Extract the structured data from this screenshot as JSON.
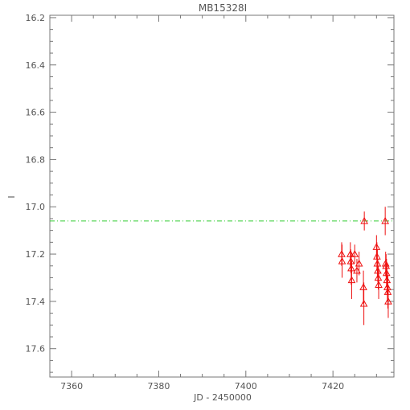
{
  "chart_data": {
    "type": "scatter",
    "title": "MB15328I",
    "xlabel": "JD - 2450000",
    "ylabel": "I",
    "xlim": [
      7355,
      7434
    ],
    "ylim": [
      17.72,
      16.19
    ],
    "y_inverted": true,
    "x_ticks": [
      {
        "value": 7360,
        "label": "7360"
      },
      {
        "value": 7380,
        "label": "7380"
      },
      {
        "value": 7400,
        "label": "7400"
      },
      {
        "value": 7420,
        "label": "7420"
      }
    ],
    "y_ticks": [
      {
        "value": 16.2,
        "label": "16.2"
      },
      {
        "value": 16.4,
        "label": "16.4"
      },
      {
        "value": 16.6,
        "label": "16.6"
      },
      {
        "value": 16.8,
        "label": "16.8"
      },
      {
        "value": 17.0,
        "label": "17.0"
      },
      {
        "value": 17.2,
        "label": "17.2"
      },
      {
        "value": 17.4,
        "label": "17.4"
      },
      {
        "value": 17.6,
        "label": "17.6"
      }
    ],
    "reference_line": {
      "y": 17.06,
      "color": "#33cc33",
      "style": "dash-dot"
    },
    "series": [
      {
        "color": "#ee1111",
        "marker": "triangle",
        "points": [
          {
            "x": 7422.0,
            "y": 17.2,
            "err": 0.05
          },
          {
            "x": 7422.1,
            "y": 17.23,
            "err": 0.07
          },
          {
            "x": 7424.0,
            "y": 17.2,
            "err": 0.05
          },
          {
            "x": 7424.1,
            "y": 17.23,
            "err": 0.05
          },
          {
            "x": 7424.2,
            "y": 17.26,
            "err": 0.07
          },
          {
            "x": 7424.3,
            "y": 17.31,
            "err": 0.08
          },
          {
            "x": 7425.0,
            "y": 17.2,
            "err": 0.04
          },
          {
            "x": 7425.5,
            "y": 17.27,
            "err": 0.05
          },
          {
            "x": 7426.0,
            "y": 17.24,
            "err": 0.05
          },
          {
            "x": 7427.0,
            "y": 17.34,
            "err": 0.07
          },
          {
            "x": 7427.1,
            "y": 17.41,
            "err": 0.09
          },
          {
            "x": 7427.2,
            "y": 17.06,
            "err": 0.04
          },
          {
            "x": 7430.0,
            "y": 17.17,
            "err": 0.05
          },
          {
            "x": 7430.1,
            "y": 17.21,
            "err": 0.06
          },
          {
            "x": 7430.2,
            "y": 17.24,
            "err": 0.06
          },
          {
            "x": 7430.3,
            "y": 17.27,
            "err": 0.05
          },
          {
            "x": 7430.4,
            "y": 17.3,
            "err": 0.05
          },
          {
            "x": 7430.5,
            "y": 17.33,
            "err": 0.06
          },
          {
            "x": 7432.0,
            "y": 17.06,
            "err": 0.06
          },
          {
            "x": 7432.1,
            "y": 17.24,
            "err": 0.05
          },
          {
            "x": 7432.2,
            "y": 17.25,
            "err": 0.05
          },
          {
            "x": 7432.3,
            "y": 17.28,
            "err": 0.06
          },
          {
            "x": 7432.4,
            "y": 17.31,
            "err": 0.06
          },
          {
            "x": 7432.5,
            "y": 17.34,
            "err": 0.06
          },
          {
            "x": 7432.6,
            "y": 17.36,
            "err": 0.07
          },
          {
            "x": 7432.7,
            "y": 17.4,
            "err": 0.07
          }
        ]
      }
    ]
  }
}
